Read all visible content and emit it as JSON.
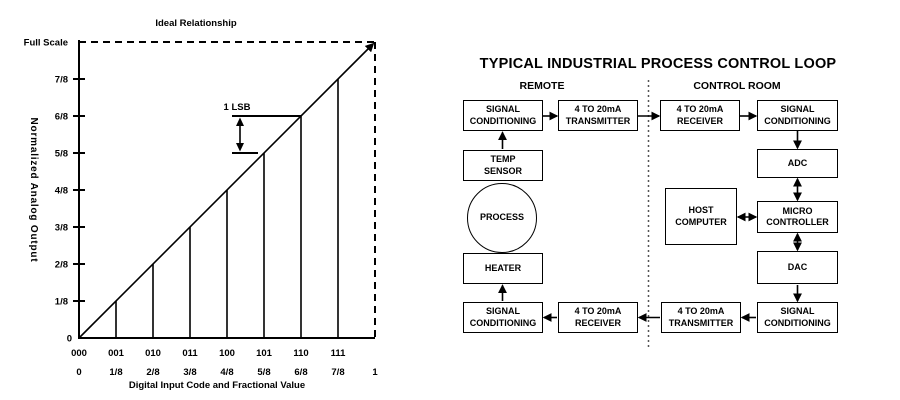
{
  "chart_data": {
    "type": "line",
    "title": "Ideal Relationship",
    "xlabel": "Digital Input Code and Fractional Value",
    "ylabel": "Normalized Analog Output",
    "y_axis_top_label": "Full Scale",
    "y_origin_label": "0",
    "x_code_labels": [
      "000",
      "001",
      "010",
      "011",
      "100",
      "101",
      "110",
      "111"
    ],
    "x_fraction_labels": [
      "0",
      "1/8",
      "2/8",
      "3/8",
      "4/8",
      "5/8",
      "6/8",
      "7/8",
      "1"
    ],
    "y_tick_labels": [
      "1/8",
      "2/8",
      "3/8",
      "4/8",
      "5/8",
      "6/8",
      "7/8"
    ],
    "xlim": [
      0,
      1
    ],
    "ylim": [
      0,
      1
    ],
    "grid": false,
    "line_series": {
      "name": "ideal-transfer-function",
      "x": [
        0,
        1
      ],
      "y": [
        0,
        1
      ]
    },
    "droplines_x": [
      0.125,
      0.25,
      0.375,
      0.5,
      0.625,
      0.75,
      0.875
    ],
    "annotation": {
      "label": "1 LSB",
      "from_y": 0.625,
      "to_y": 0.75,
      "at_x_span": [
        0.52,
        0.75
      ]
    },
    "axis_color": "#000000",
    "legend": null
  },
  "diagram": {
    "title": "TYPICAL INDUSTRIAL PROCESS CONTROL LOOP",
    "region_left_label": "REMOTE",
    "region_right_label": "CONTROL ROOM",
    "boxes": [
      {
        "label": "SIGNAL\nCONDITIONING"
      },
      {
        "label": "4 TO 20mA\nTRANSMITTER"
      },
      {
        "label": "4 TO 20mA\nRECEIVER"
      },
      {
        "label": "SIGNAL\nCONDITIONING"
      },
      {
        "label": "ADC"
      },
      {
        "label": "MICRO\nCONTROLLER"
      },
      {
        "label": "HOST\nCOMPUTER"
      },
      {
        "label": "DAC"
      },
      {
        "label": "SIGNAL\nCONDITIONING"
      },
      {
        "label": "4 TO 20mA\nTRANSMITTER"
      },
      {
        "label": "4 TO 20mA\nRECEIVER"
      },
      {
        "label": "SIGNAL\nCONDITIONING"
      },
      {
        "label": "HEATER"
      },
      {
        "label": "PROCESS"
      },
      {
        "label": "TEMP\nSENSOR"
      }
    ]
  }
}
